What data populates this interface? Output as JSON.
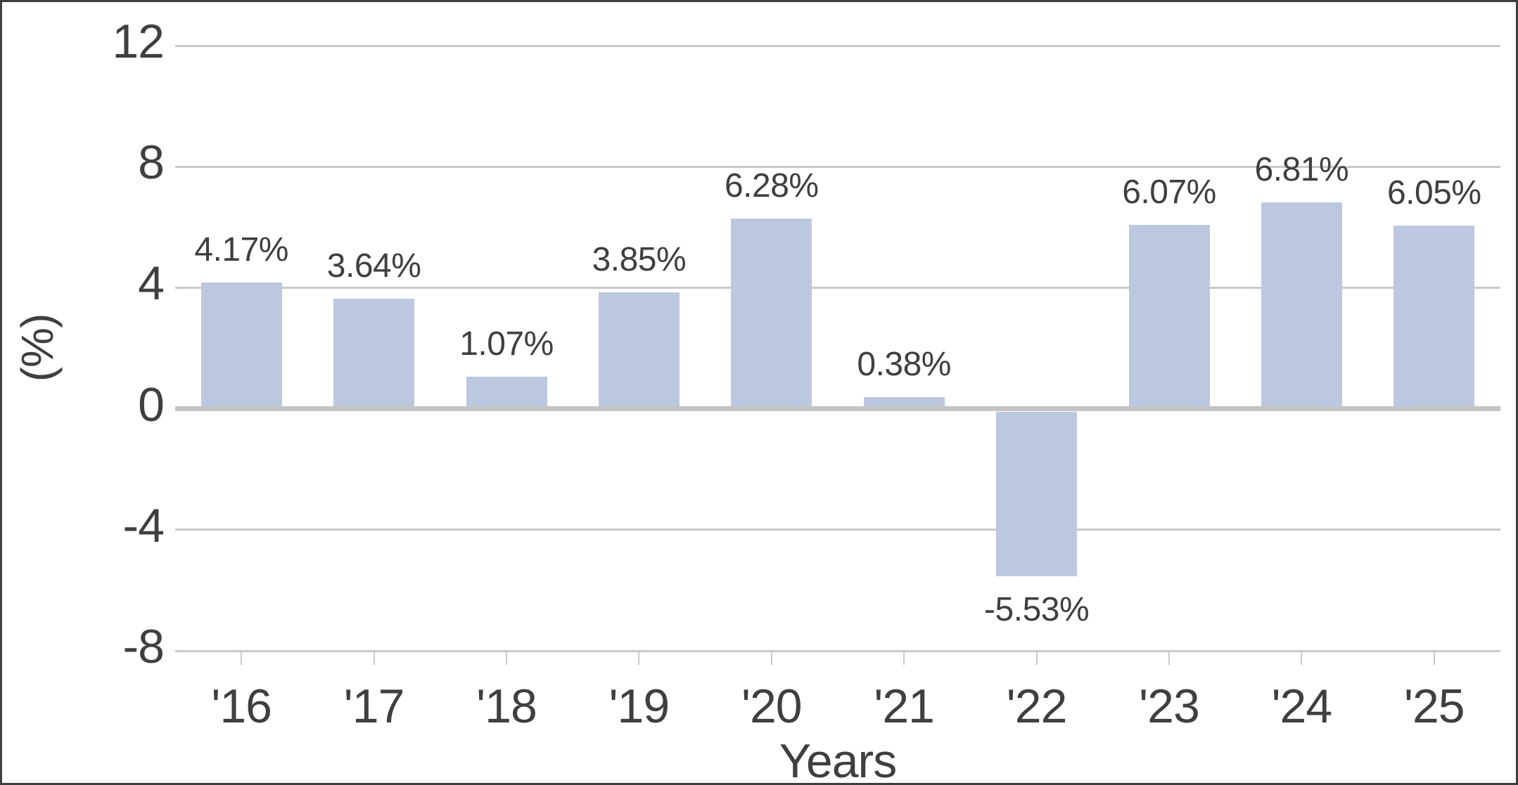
{
  "chart_data": {
    "type": "bar",
    "title": "",
    "xlabel": "Years",
    "ylabel": "(%)",
    "categories": [
      "'16",
      "'17",
      "'18",
      "'19",
      "'20",
      "'21",
      "'22",
      "'23",
      "'24",
      "'25"
    ],
    "values": [
      4.17,
      3.64,
      1.07,
      3.85,
      6.28,
      0.38,
      -5.53,
      6.07,
      6.81,
      6.05
    ],
    "value_labels": [
      "4.17%",
      "3.64%",
      "1.07%",
      "3.85%",
      "6.28%",
      "0.38%",
      "-5.53%",
      "6.07%",
      "6.81%",
      "6.05%"
    ],
    "y_ticks": [
      12,
      8,
      4,
      0,
      -4,
      -8
    ],
    "ylim": [
      -8,
      12
    ],
    "grid": true,
    "legend": false
  },
  "colors": {
    "bar": "#bcc8e0",
    "gridline": "#c9c9c9",
    "zero_line": "#c4c4c4",
    "tick": "#c9c9c9",
    "text": "#3f3f3f",
    "border": "#3f3f3f",
    "background": "#ffffff"
  }
}
